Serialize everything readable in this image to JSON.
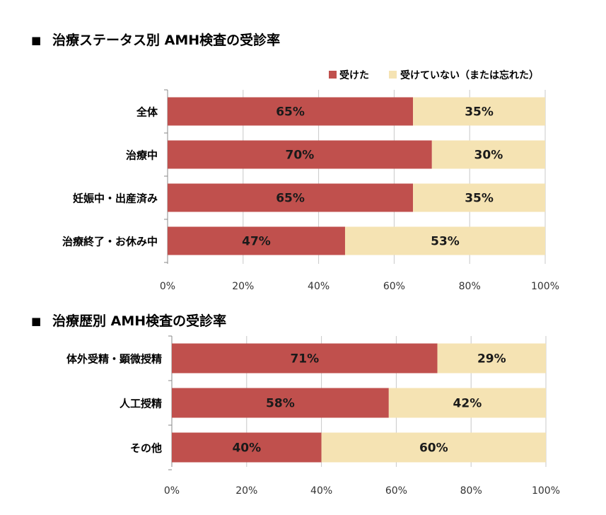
{
  "colors": {
    "received": "#c0504d",
    "not_received": "#f5e3b3",
    "grid": "#c8c8c8",
    "axis": "#888888"
  },
  "legend": {
    "received": "受けた",
    "not_received": "受けていない（または忘れた）"
  },
  "chart_data": [
    {
      "type": "bar",
      "orientation": "horizontal",
      "stacked": "percent",
      "title": "治療ステータス別 AMH検査の受診率",
      "categories": [
        "全体",
        "治療中",
        "妊娠中・出産済み",
        "治療終了・お休み中"
      ],
      "series": [
        {
          "name": "受けた",
          "values": [
            65,
            70,
            65,
            47
          ],
          "labels": [
            "65%",
            "70%",
            "65%",
            "47%"
          ]
        },
        {
          "name": "受けていない（または忘れた）",
          "values": [
            35,
            30,
            35,
            53
          ],
          "labels": [
            "35%",
            "30%",
            "35%",
            "53%"
          ]
        }
      ],
      "xlim": [
        0,
        100
      ],
      "ticks": [
        "0%",
        "20%",
        "40%",
        "60%",
        "80%",
        "100%"
      ],
      "grid": true,
      "legend_position": "top-right"
    },
    {
      "type": "bar",
      "orientation": "horizontal",
      "stacked": "percent",
      "title": "治療歴別 AMH検査の受診率",
      "categories": [
        "体外受精・顕微授精",
        "人工授精",
        "その他"
      ],
      "series": [
        {
          "name": "受けた",
          "values": [
            71,
            58,
            40
          ],
          "labels": [
            "71%",
            "58%",
            "40%"
          ]
        },
        {
          "name": "受けていない（または忘れた）",
          "values": [
            29,
            42,
            60
          ],
          "labels": [
            "29%",
            "42%",
            "60%"
          ]
        }
      ],
      "xlim": [
        0,
        100
      ],
      "ticks": [
        "0%",
        "20%",
        "40%",
        "60%",
        "80%",
        "100%"
      ],
      "grid": true
    }
  ]
}
